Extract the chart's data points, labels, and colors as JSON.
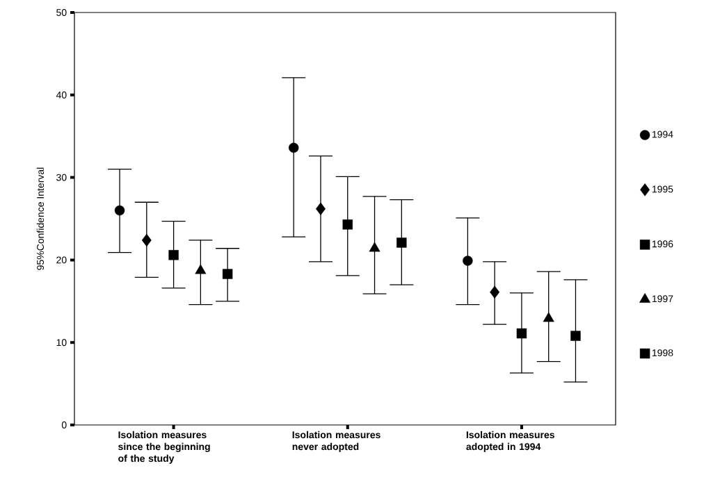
{
  "chart_data": {
    "type": "scatter",
    "ylabel": "95%Confidence Interval",
    "categories": [
      "Isolation measures since the beginning of the study",
      "Isolation measures never adopted",
      "Isolation measures adopted in 1994"
    ],
    "ylim": [
      0,
      50
    ],
    "yticks": [
      0,
      10,
      20,
      30,
      40,
      50
    ],
    "legend": "right",
    "series": [
      {
        "name": "1994",
        "color": "#000000",
        "marker": "circle",
        "values": [
          26.0,
          33.6,
          19.9
        ],
        "errors": [
          [
            20.9,
            31.0
          ],
          [
            22.8,
            42.1
          ],
          [
            14.6,
            25.1
          ]
        ]
      },
      {
        "name": "1995",
        "color": "#000000",
        "marker": "diamond",
        "values": [
          22.4,
          26.2,
          16.1
        ],
        "errors": [
          [
            17.9,
            27.0
          ],
          [
            19.8,
            32.6
          ],
          [
            12.2,
            19.8
          ]
        ]
      },
      {
        "name": "1996",
        "color": "#000000",
        "marker": "square",
        "values": [
          20.6,
          24.3,
          11.1
        ],
        "errors": [
          [
            16.6,
            24.7
          ],
          [
            18.1,
            30.1
          ],
          [
            6.3,
            16.0
          ]
        ]
      },
      {
        "name": "1997",
        "color": "#000000",
        "marker": "triangle",
        "values": [
          18.7,
          21.4,
          12.9
        ],
        "errors": [
          [
            14.6,
            22.4
          ],
          [
            15.9,
            27.7
          ],
          [
            7.7,
            18.6
          ]
        ]
      },
      {
        "name": "1998",
        "color": "#000000",
        "marker": "square",
        "values": [
          18.3,
          22.1,
          10.8
        ],
        "errors": [
          [
            15.0,
            21.4
          ],
          [
            17.0,
            27.3
          ],
          [
            5.2,
            17.6
          ]
        ]
      }
    ]
  }
}
